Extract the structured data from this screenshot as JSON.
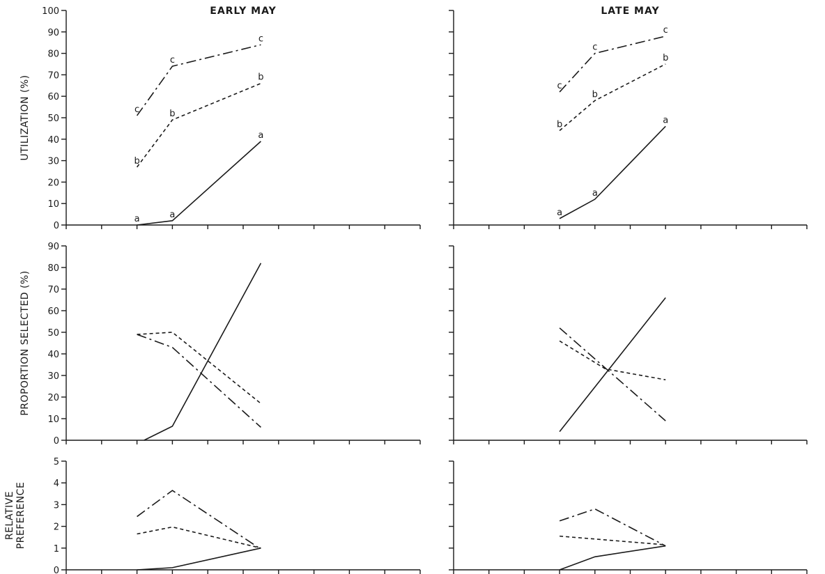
{
  "chart_data": [
    {
      "type": "line",
      "panel": "utilization",
      "column": "early",
      "title": "EARLY MAY",
      "ylabel": "UTILIZATION (%)",
      "ylim": [
        0,
        100
      ],
      "yticks": [
        0,
        10,
        20,
        30,
        40,
        50,
        60,
        70,
        80,
        90,
        100
      ],
      "ytick_labels": [
        "0",
        "10",
        "20",
        "30",
        "40",
        "50",
        "60",
        "70",
        "80",
        "90",
        "100"
      ],
      "xlim": [
        0,
        10
      ],
      "series": [
        {
          "style": "solid",
          "x": [
            2,
            3,
            5.5
          ],
          "y": [
            0,
            2,
            39
          ],
          "point_label": "a"
        },
        {
          "style": "dotted",
          "x": [
            2,
            3,
            5.5
          ],
          "y": [
            27,
            49,
            66
          ],
          "point_label": "b"
        },
        {
          "style": "dashdot",
          "x": [
            2,
            3,
            5.5
          ],
          "y": [
            51,
            74,
            84
          ],
          "point_label": "c"
        }
      ]
    },
    {
      "type": "line",
      "panel": "utilization",
      "column": "late",
      "title": "LATE MAY",
      "ylim": [
        0,
        100
      ],
      "xlim": [
        0,
        10
      ],
      "series": [
        {
          "style": "solid",
          "x": [
            3,
            4,
            6
          ],
          "y": [
            3,
            12,
            46
          ],
          "point_label": "a"
        },
        {
          "style": "dotted",
          "x": [
            3,
            4,
            6
          ],
          "y": [
            44,
            58,
            75
          ],
          "point_label": "b"
        },
        {
          "style": "dashdot",
          "x": [
            3,
            4,
            6
          ],
          "y": [
            62,
            80,
            88
          ],
          "point_label": "c"
        }
      ]
    },
    {
      "type": "line",
      "panel": "proportion",
      "column": "early",
      "ylabel": "PROPORTION SELECTED (%)",
      "ylim": [
        0,
        90
      ],
      "yticks": [
        0,
        10,
        20,
        30,
        40,
        50,
        60,
        70,
        80,
        90
      ],
      "ytick_labels": [
        "0",
        "10",
        "20",
        "30",
        "40",
        "50",
        "60",
        "70",
        "80",
        "90"
      ],
      "xlim": [
        0,
        10
      ],
      "series": [
        {
          "style": "solid",
          "x": [
            2.2,
            3,
            5.5
          ],
          "y": [
            0,
            6.5,
            82
          ]
        },
        {
          "style": "dotted",
          "x": [
            2,
            3,
            5.5
          ],
          "y": [
            49,
            50,
            17
          ]
        },
        {
          "style": "dashdot",
          "x": [
            2,
            3,
            5.5
          ],
          "y": [
            49,
            43,
            6
          ]
        }
      ]
    },
    {
      "type": "line",
      "panel": "proportion",
      "column": "late",
      "ylim": [
        0,
        90
      ],
      "xlim": [
        0,
        10
      ],
      "series": [
        {
          "style": "solid",
          "x": [
            3,
            6
          ],
          "y": [
            4,
            66
          ]
        },
        {
          "style": "dotted",
          "x": [
            3,
            4.3,
            6
          ],
          "y": [
            46,
            33,
            28
          ]
        },
        {
          "style": "dashdot",
          "x": [
            3,
            6
          ],
          "y": [
            52,
            9
          ]
        }
      ]
    },
    {
      "type": "line",
      "panel": "preference",
      "column": "early",
      "ylabel": "RELATIVE PREFERENCE",
      "ylabel_lines": [
        "RELATIVE",
        "PREFERENCE"
      ],
      "ylim": [
        0,
        5
      ],
      "yticks": [
        0,
        1,
        2,
        3,
        4,
        5
      ],
      "ytick_labels": [
        "0",
        "1",
        "2",
        "3",
        "4",
        "5"
      ],
      "xlim": [
        0,
        10
      ],
      "series": [
        {
          "style": "solid",
          "x": [
            2,
            3,
            5.5
          ],
          "y": [
            0,
            0.1,
            1.0
          ]
        },
        {
          "style": "dotted",
          "x": [
            2,
            3,
            5.5
          ],
          "y": [
            1.65,
            1.97,
            1.0
          ]
        },
        {
          "style": "dashdot",
          "x": [
            2,
            3,
            5.5
          ],
          "y": [
            2.45,
            3.65,
            0.95
          ]
        }
      ]
    },
    {
      "type": "line",
      "panel": "preference",
      "column": "late",
      "ylim": [
        0,
        5
      ],
      "xlim": [
        0,
        10
      ],
      "series": [
        {
          "style": "solid",
          "x": [
            3,
            4,
            6
          ],
          "y": [
            0,
            0.6,
            1.1
          ]
        },
        {
          "style": "dotted",
          "x": [
            3,
            6
          ],
          "y": [
            1.55,
            1.15
          ]
        },
        {
          "style": "dashdot",
          "x": [
            3,
            4,
            6
          ],
          "y": [
            2.25,
            2.8,
            1.1
          ]
        }
      ]
    }
  ]
}
